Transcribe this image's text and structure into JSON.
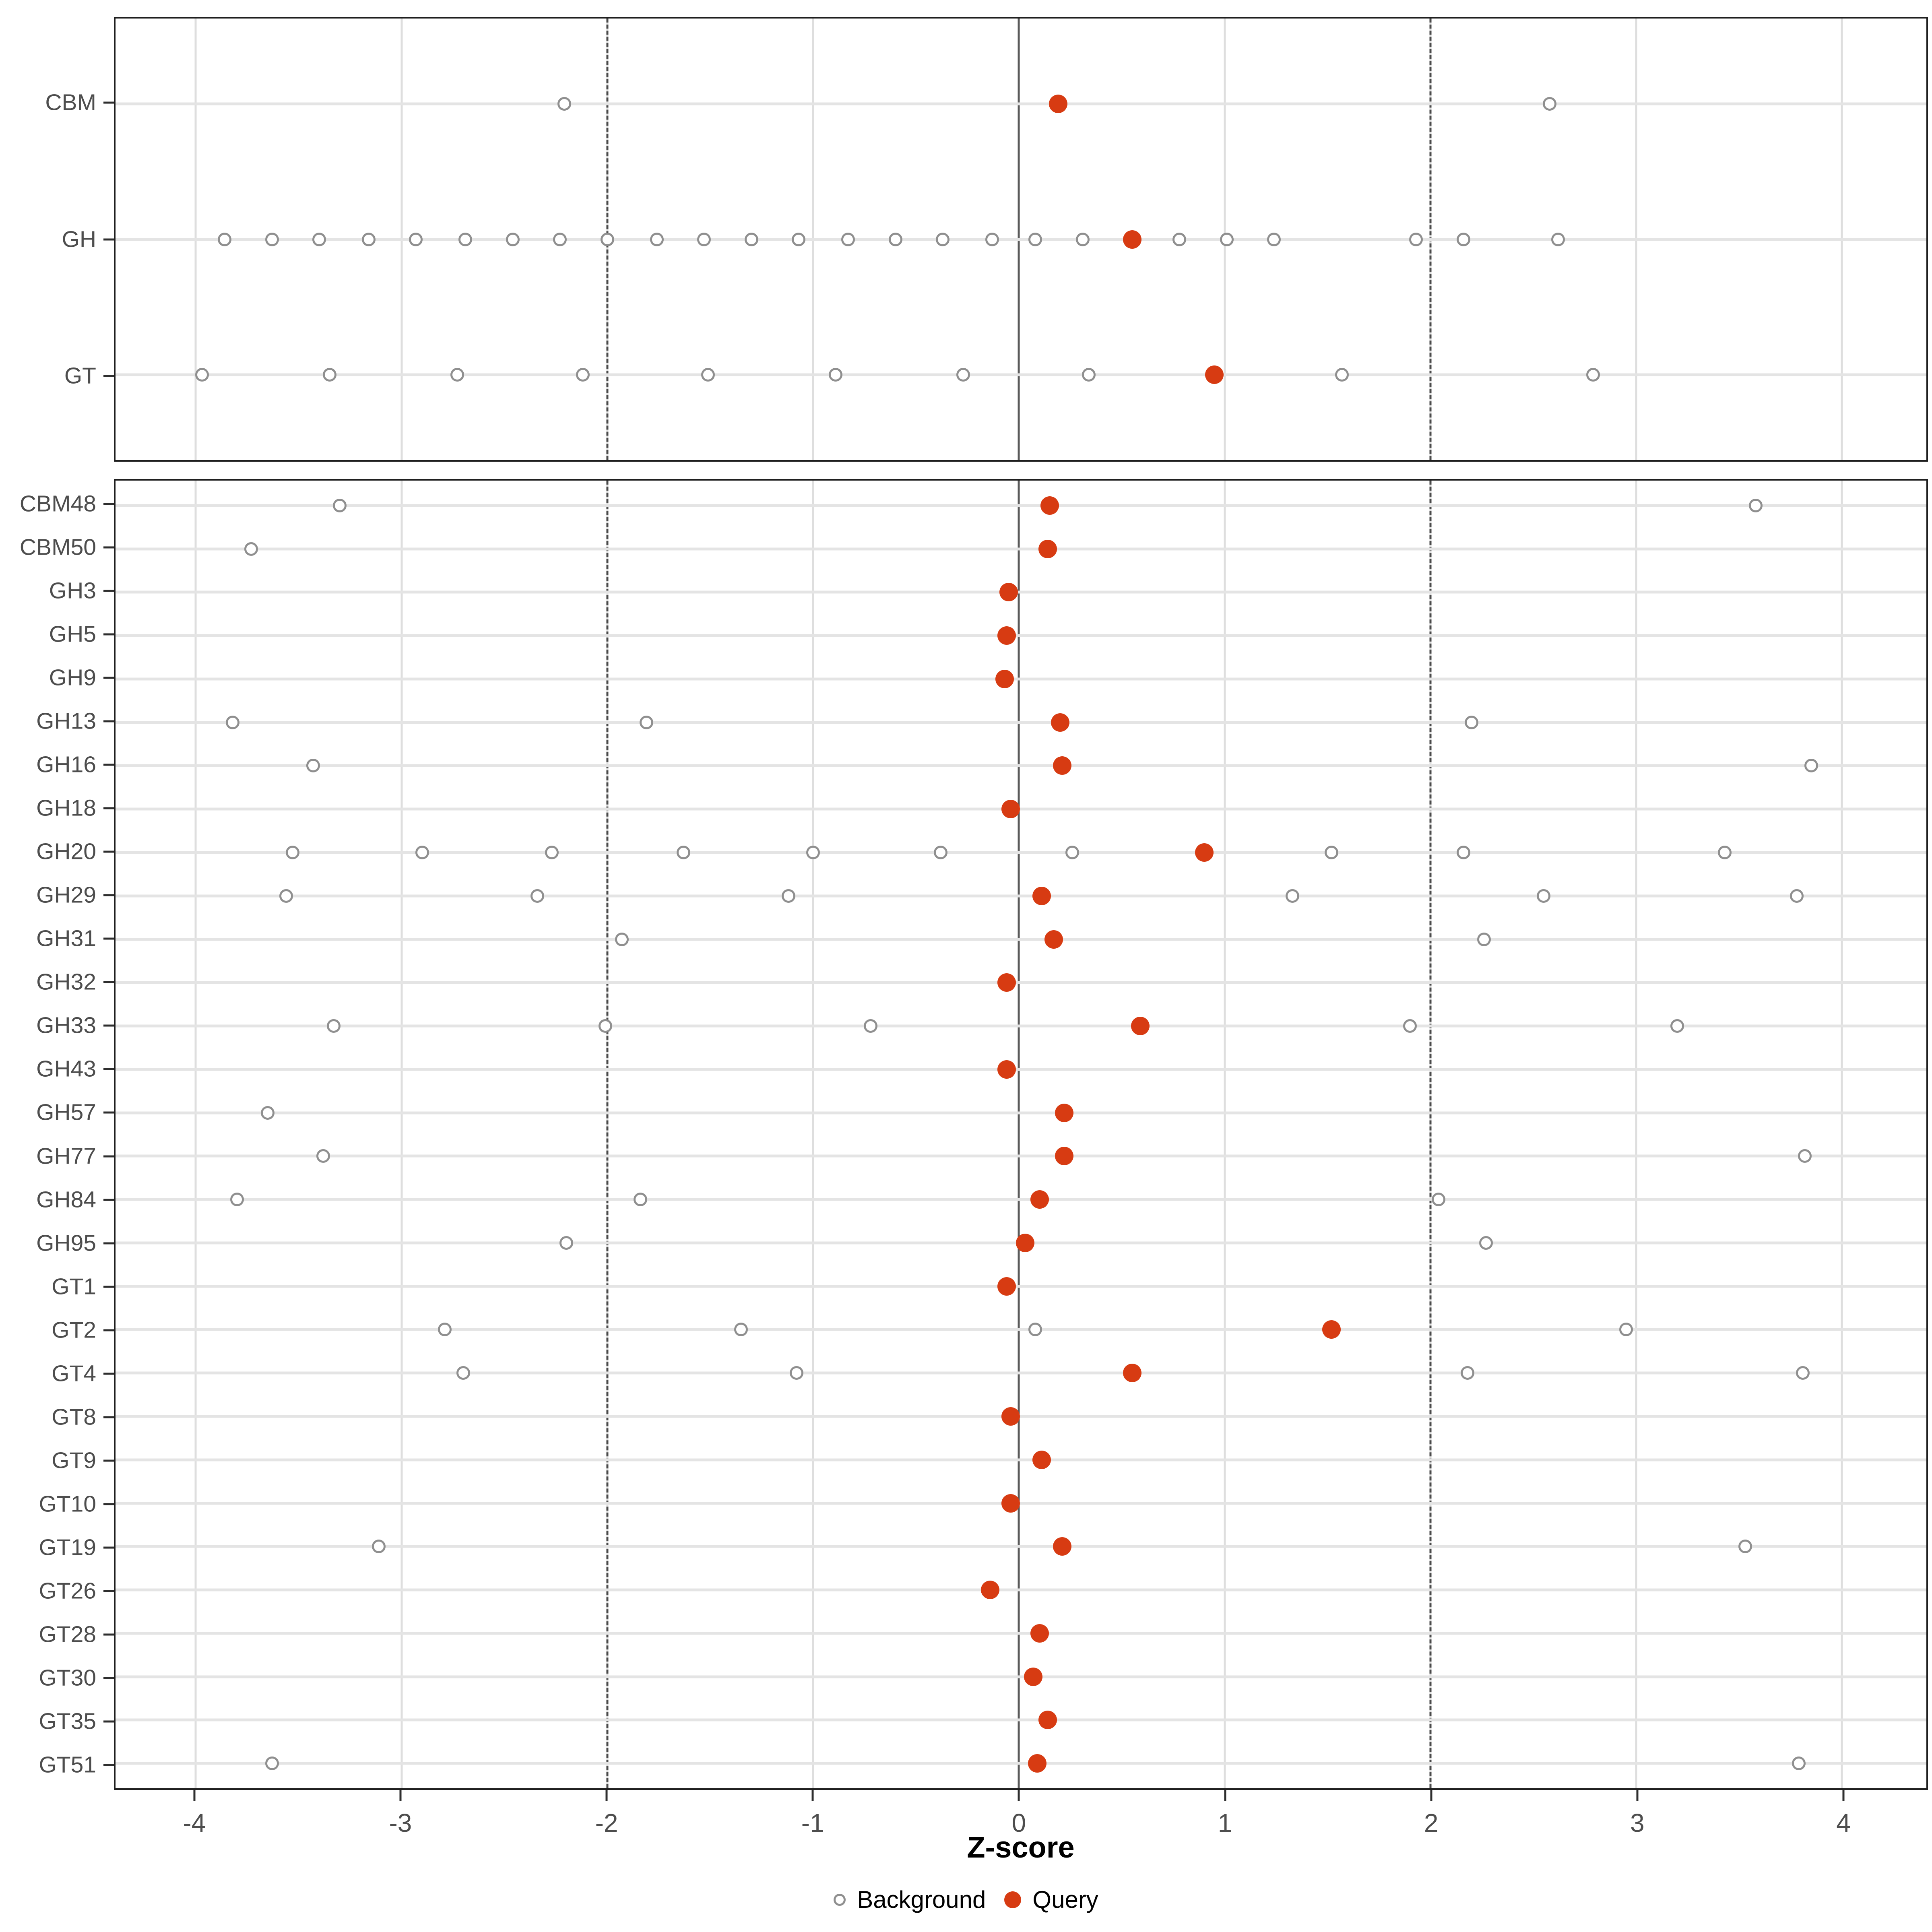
{
  "chart_data": {
    "type": "scatter",
    "title": "",
    "xlabel": "Z-score",
    "x_ticks": [
      -4,
      -3,
      -2,
      -1,
      0,
      1,
      2,
      3,
      4
    ],
    "x_range": [
      -4.39,
      4.41
    ],
    "grid": "on",
    "legend_position": "bottom",
    "reference_lines": {
      "solid": [
        0
      ],
      "dashed": [
        -2,
        2
      ]
    },
    "legend": [
      {
        "label": "Background",
        "marker": "open-circle",
        "color": "#8f8f8f"
      },
      {
        "label": "Query",
        "marker": "filled-circle",
        "color": "#d73b12"
      }
    ],
    "colors": {
      "query": "#d73b12",
      "background_stroke": "#8f8f8f",
      "row_gridline": "#e4e4e4",
      "vertical_gridline": "#dedede",
      "zero_line": "#5a5a5a",
      "dashed_line": "#4a4a4a",
      "panel_border": "#1f1f1f",
      "axis_text": "#4d4d4d"
    },
    "panels": [
      {
        "name": "family-class-summary",
        "rows": [
          {
            "label": "CBM",
            "background": [
              -2.21,
              2.58
            ],
            "query": 0.19
          },
          {
            "label": "GH",
            "background": [
              -3.86,
              -3.63,
              -3.4,
              -3.16,
              -2.93,
              -2.69,
              -2.46,
              -2.23,
              -2.0,
              -1.76,
              -1.53,
              -1.3,
              -1.07,
              -0.83,
              -0.6,
              -0.37,
              -0.13,
              0.08,
              0.31,
              0.78,
              1.01,
              1.24,
              1.93,
              2.16,
              2.62
            ],
            "query": 0.55
          },
          {
            "label": "GT",
            "background": [
              -3.97,
              -3.35,
              -2.73,
              -2.12,
              -1.51,
              -0.89,
              -0.27,
              0.34,
              1.57,
              2.79
            ],
            "query": 0.95
          }
        ]
      },
      {
        "name": "family-detail",
        "rows": [
          {
            "label": "CBM48",
            "background": [
              -3.3,
              3.58
            ],
            "query": 0.15
          },
          {
            "label": "CBM50",
            "background": [
              -3.73
            ],
            "query": 0.14
          },
          {
            "label": "GH3",
            "background": [],
            "query": -0.05
          },
          {
            "label": "GH5",
            "background": [],
            "query": -0.06
          },
          {
            "label": "GH9",
            "background": [],
            "query": -0.07
          },
          {
            "label": "GH13",
            "background": [
              -3.82,
              -1.81,
              2.2
            ],
            "query": 0.2
          },
          {
            "label": "GH16",
            "background": [
              -3.43,
              3.85
            ],
            "query": 0.21
          },
          {
            "label": "GH18",
            "background": [],
            "query": -0.04
          },
          {
            "label": "GH20",
            "background": [
              -3.53,
              -2.9,
              -2.27,
              -1.63,
              -1.0,
              -0.38,
              0.26,
              1.52,
              2.16,
              3.43
            ],
            "query": 0.9
          },
          {
            "label": "GH29",
            "background": [
              -3.56,
              -2.34,
              -1.12,
              1.33,
              2.55,
              3.78
            ],
            "query": 0.11
          },
          {
            "label": "GH31",
            "background": [
              -1.93,
              2.26
            ],
            "query": 0.17
          },
          {
            "label": "GH32",
            "background": [],
            "query": -0.06
          },
          {
            "label": "GH33",
            "background": [
              -3.33,
              -2.01,
              -0.72,
              1.9,
              3.2
            ],
            "query": 0.59
          },
          {
            "label": "GH43",
            "background": [],
            "query": -0.06
          },
          {
            "label": "GH57",
            "background": [
              -3.65
            ],
            "query": 0.22
          },
          {
            "label": "GH77",
            "background": [
              -3.38,
              3.82
            ],
            "query": 0.22
          },
          {
            "label": "GH84",
            "background": [
              -3.8,
              -1.84,
              2.04
            ],
            "query": 0.1
          },
          {
            "label": "GH95",
            "background": [
              -2.2,
              2.27
            ],
            "query": 0.03
          },
          {
            "label": "GT1",
            "background": [],
            "query": -0.06
          },
          {
            "label": "GT2",
            "background": [
              -2.79,
              -1.35,
              0.08,
              2.95
            ],
            "query": 1.52
          },
          {
            "label": "GT4",
            "background": [
              -2.7,
              -1.08,
              2.18,
              3.81
            ],
            "query": 0.55
          },
          {
            "label": "GT8",
            "background": [],
            "query": -0.04
          },
          {
            "label": "GT9",
            "background": [],
            "query": 0.11
          },
          {
            "label": "GT10",
            "background": [],
            "query": -0.04
          },
          {
            "label": "GT19",
            "background": [
              -3.11,
              3.53
            ],
            "query": 0.21
          },
          {
            "label": "GT26",
            "background": [],
            "query": -0.14
          },
          {
            "label": "GT28",
            "background": [],
            "query": 0.1
          },
          {
            "label": "GT30",
            "background": [],
            "query": 0.07
          },
          {
            "label": "GT35",
            "background": [],
            "query": 0.14
          },
          {
            "label": "GT51",
            "background": [
              -3.63,
              3.79
            ],
            "query": 0.09
          }
        ]
      }
    ]
  }
}
